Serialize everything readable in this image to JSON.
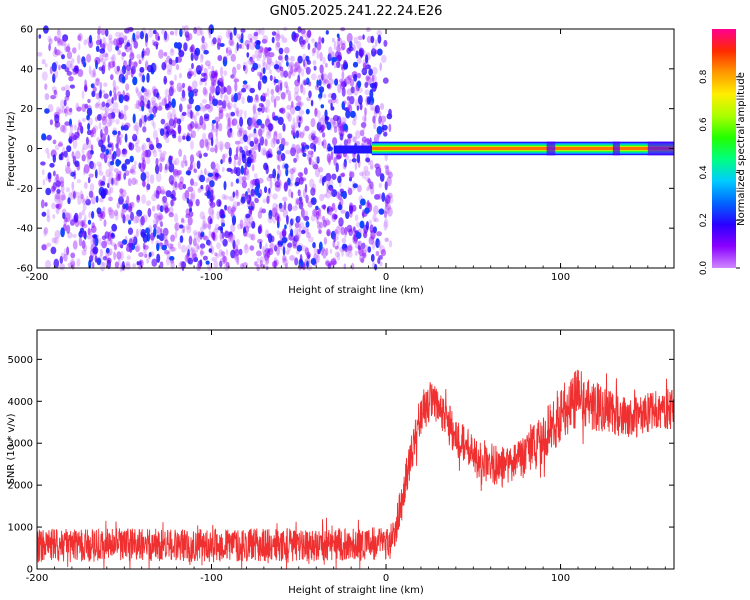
{
  "figure": {
    "title": "GN05.2025.241.22.24.E26"
  },
  "chart_data": [
    {
      "type": "heatmap",
      "title": "GN05.2025.241.22.24.E26",
      "xlabel": "Height of straight line (km)",
      "ylabel": "Frequency (Hz)",
      "xlim": [
        -200,
        165
      ],
      "ylim": [
        -60,
        60
      ],
      "x_ticks": [
        "-200",
        "-100",
        "0",
        "100"
      ],
      "y_ticks": [
        "60",
        "40",
        "20",
        "0",
        "-20",
        "-40",
        "-60"
      ],
      "colorbar": {
        "label": "Normalized spectral amplitude",
        "range": [
          0,
          1
        ],
        "ticks": [
          "0.0",
          "0.2",
          "0.4",
          "0.6",
          "0.8"
        ],
        "colormap": [
          "#cf88ff",
          "#8a00ff",
          "#2a00ff",
          "#0066ff",
          "#00ccff",
          "#00ff80",
          "#22ff00",
          "#aaff00",
          "#ffee00",
          "#ff9900",
          "#ff2a00",
          "#ff0090"
        ]
      },
      "description_features": {
        "noise_region_x": [
          -200,
          -5
        ],
        "noise_frequency_range": [
          -60,
          60
        ],
        "noise_amplitude_range": [
          0.02,
          0.25
        ],
        "tone_start_x": -30,
        "tone_frequency": 0,
        "tone_peak_amplitude": 0.85
      }
    },
    {
      "type": "line",
      "xlabel": "Height of straight line (km)",
      "ylabel": "SNR (10 * v/v)",
      "xlim": [
        -200,
        165
      ],
      "ylim": [
        0,
        5700
      ],
      "x_ticks": [
        "-200",
        "-100",
        "0",
        "100"
      ],
      "y_ticks": [
        "0",
        "1000",
        "2000",
        "3000",
        "4000",
        "5000"
      ],
      "series": [
        {
          "color": "#f03030",
          "x": [
            -200,
            -150,
            -100,
            -50,
            -10,
            0,
            5,
            10,
            15,
            20,
            25,
            30,
            35,
            40,
            50,
            60,
            70,
            80,
            90,
            100,
            110,
            120,
            130,
            140,
            150,
            165
          ],
          "y": [
            550,
            580,
            560,
            580,
            600,
            620,
            900,
            1800,
            2900,
            3700,
            4000,
            3800,
            3500,
            3200,
            2700,
            2500,
            2400,
            2700,
            3100,
            3700,
            4100,
            3900,
            3700,
            3600,
            3700,
            3850
          ],
          "noise_amplitude": [
            400,
            400,
            400,
            400,
            400,
            400,
            400,
            500,
            500,
            500,
            500,
            500,
            500,
            500,
            500,
            500,
            500,
            500,
            600,
            700,
            700,
            600,
            500,
            500,
            500,
            500
          ]
        }
      ]
    }
  ]
}
